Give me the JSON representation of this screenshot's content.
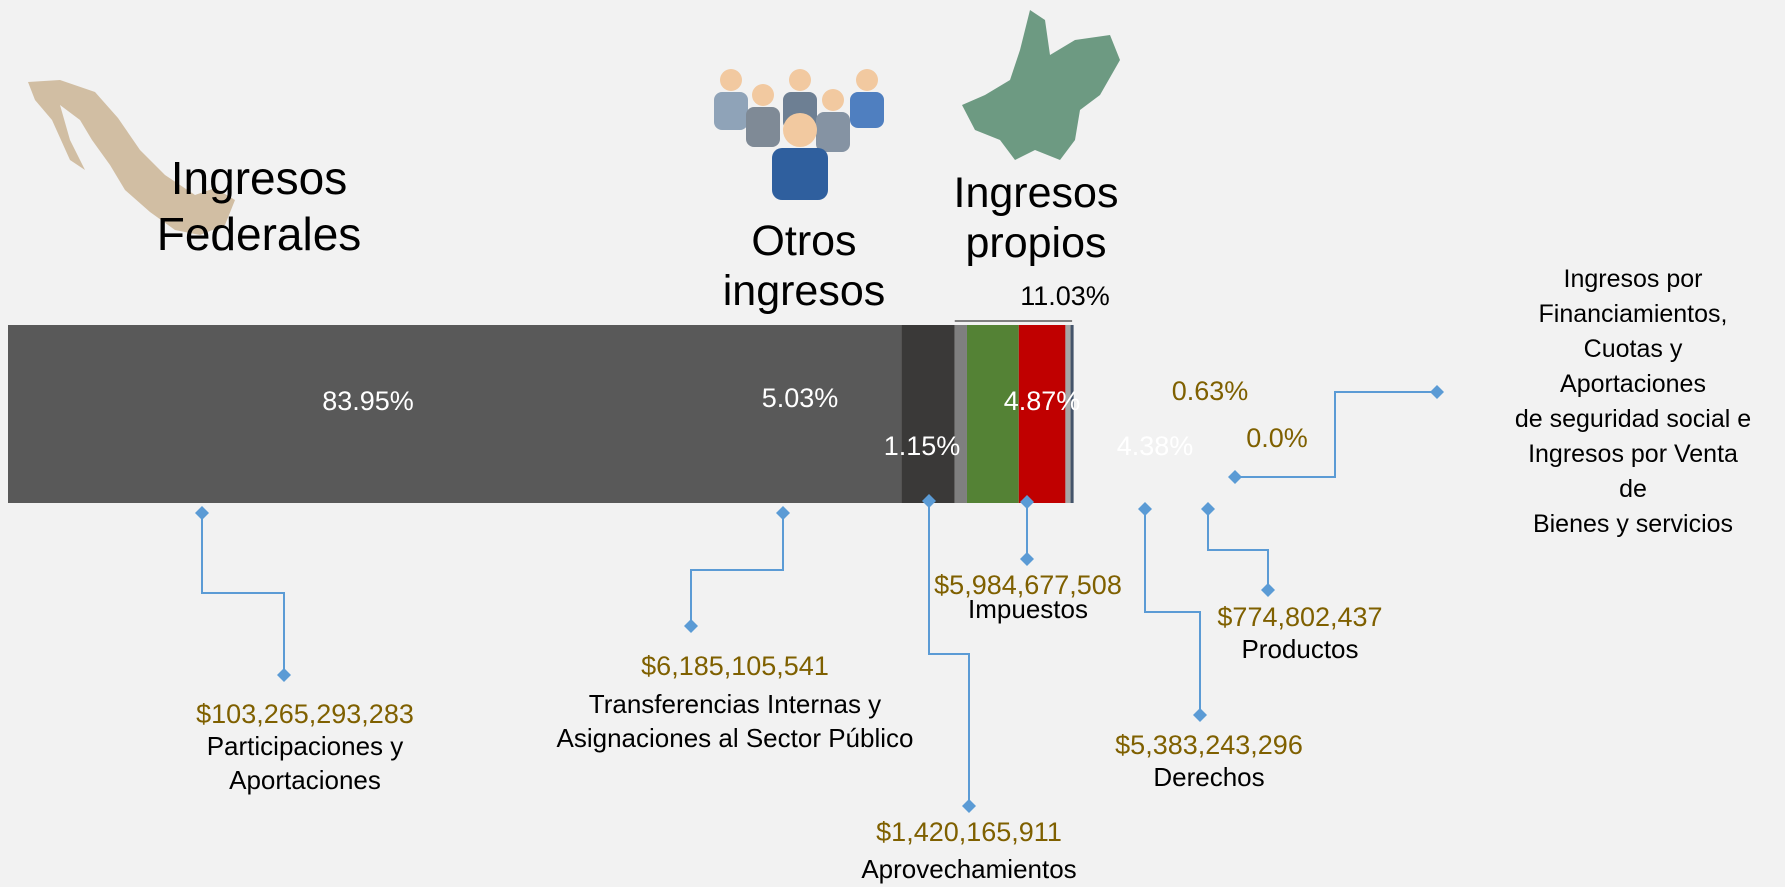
{
  "chart_data": {
    "type": "bar",
    "orientation": "horizontal",
    "stacked": true,
    "groups": [
      {
        "label": "Ingresos\nFederales"
      },
      {
        "label": "Otros\ningresos"
      },
      {
        "label": "Ingresos\npropios",
        "value": 11.03,
        "value_label": "11.03%"
      }
    ],
    "series": [
      {
        "name": "Participaciones y\nAportaciones",
        "color": "#595959",
        "label_color": "#ffffff",
        "values": [
          83.95
        ],
        "value_labels": [
          "83.95%"
        ],
        "amount": 103265293283,
        "amount_label": "$103,265,293,283"
      },
      {
        "name": "Transferencias Internas y\nAsignaciones al Sector Público",
        "color": "#3a3938",
        "label_color": "#ffffff",
        "values": [
          5.03
        ],
        "value_labels": [
          "5.03%"
        ],
        "amount": 6185105541,
        "amount_label": "$6,185,105,541"
      },
      {
        "name": "Aprovechamientos",
        "color": "#7f7f7f",
        "label_color": "#ffffff",
        "values": [
          1.15
        ],
        "value_labels": [
          "1.15%"
        ],
        "amount": 1420165911,
        "amount_label": "$1,420,165,911"
      },
      {
        "name": "Impuestos",
        "color": "#548235",
        "label_color": "#ffffff",
        "values": [
          4.87
        ],
        "value_labels": [
          "4.87%"
        ],
        "amount": 5984677508,
        "amount_label": "$5,984,677,508"
      },
      {
        "name": "Derechos",
        "color": "#c00000",
        "label_color": "#ffffff",
        "values": [
          4.38
        ],
        "value_labels": [
          "4.38%"
        ],
        "amount": 5383243296,
        "amount_label": "$5,383,243,296"
      },
      {
        "name": "Productos",
        "color": "#a6a6a6",
        "label_color": "#7f6000",
        "values": [
          0.63
        ],
        "value_labels": [
          "0.63%"
        ],
        "amount": 774802437,
        "amount_label": "$774,802,437"
      },
      {
        "name": "Ingresos por\nFinanciamientos,\nCuotas y\nAportaciones\nde seguridad social e\nIngresos por Venta\nde\nBienes y servicios",
        "color": "#44546a",
        "label_color": "#7f6000",
        "values": [
          0.0
        ],
        "value_labels": [
          "0.0%"
        ]
      }
    ]
  }
}
